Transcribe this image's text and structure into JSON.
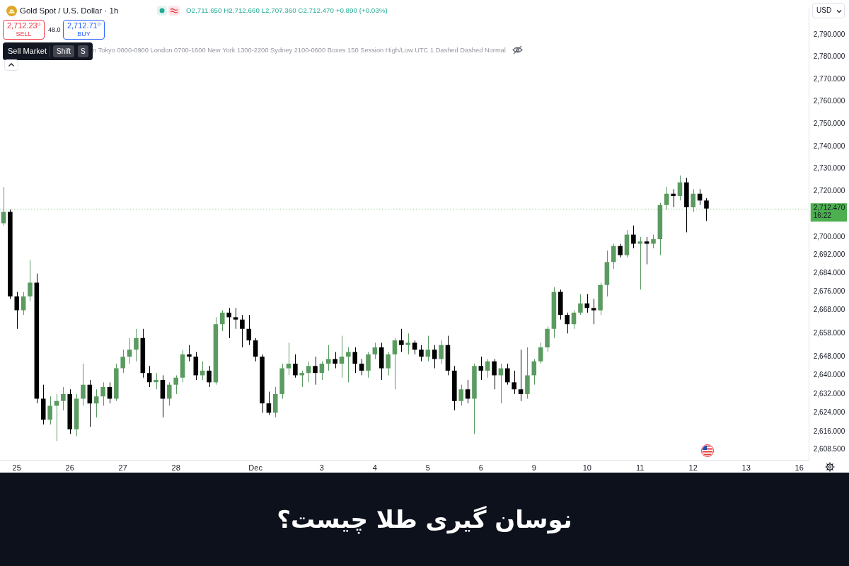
{
  "chart_data": {
    "type": "candlestick",
    "title": "نوسان گیری طلا چیست؟",
    "subtitle": "Gold Spot / U.S. Dollar · 1h",
    "categories": [
      null,
      null,
      "25",
      null,
      null,
      null,
      null,
      null,
      null,
      null,
      "26",
      null,
      null,
      null,
      null,
      null,
      null,
      null,
      "27",
      null,
      null,
      null,
      null,
      null,
      null,
      null,
      "28",
      null,
      null,
      null,
      null,
      null,
      null,
      null,
      null,
      null,
      null,
      null,
      "Dec",
      null,
      null,
      null,
      null,
      null,
      null,
      null,
      null,
      null,
      "3",
      null,
      null,
      null,
      null,
      null,
      null,
      null,
      "4",
      null,
      null,
      null,
      null,
      null,
      null,
      null,
      "5",
      null,
      null,
      null,
      null,
      null,
      null,
      null,
      "6",
      null,
      null,
      null,
      null,
      null,
      null,
      null,
      "9",
      null,
      null,
      null,
      null,
      null,
      null,
      null,
      "10",
      null,
      null,
      null,
      null,
      null,
      null,
      null,
      "11",
      null,
      null,
      null,
      null,
      null,
      null,
      null,
      "12",
      null,
      null,
      null,
      null,
      null,
      null,
      null,
      "13",
      null,
      null,
      null,
      null,
      null,
      null,
      null,
      "16",
      null
    ],
    "ohlc": [
      [
        2706,
        2722,
        2705,
        2711
      ],
      [
        2711,
        2712,
        2673,
        2674
      ],
      [
        2674,
        2676,
        2660,
        2668
      ],
      [
        2668,
        2676,
        2666,
        2674
      ],
      [
        2674,
        2690,
        2672,
        2680
      ],
      [
        2680,
        2684,
        2628,
        2630
      ],
      [
        2630,
        2636,
        2619,
        2621
      ],
      [
        2621,
        2631,
        2619,
        2627
      ],
      [
        2627,
        2632,
        2612,
        2629
      ],
      [
        2629,
        2635,
        2625,
        2632
      ],
      [
        2632,
        2634,
        2615,
        2617
      ],
      [
        2617,
        2632,
        2614,
        2630
      ],
      [
        2630,
        2645,
        2627,
        2636
      ],
      [
        2636,
        2638,
        2618,
        2628
      ],
      [
        2628,
        2634,
        2622,
        2631
      ],
      [
        2631,
        2637,
        2627,
        2635
      ],
      [
        2635,
        2637,
        2628,
        2630
      ],
      [
        2630,
        2645,
        2629,
        2643
      ],
      [
        2643,
        2651,
        2641,
        2648
      ],
      [
        2648,
        2656,
        2645,
        2651
      ],
      [
        2651,
        2660,
        2646,
        2656
      ],
      [
        2656,
        2660,
        2639,
        2641
      ],
      [
        2641,
        2644,
        2635,
        2637
      ],
      [
        2637,
        2641,
        2634,
        2638
      ],
      [
        2638,
        2640,
        2622,
        2630
      ],
      [
        2630,
        2637,
        2627,
        2636
      ],
      [
        2636,
        2640,
        2632,
        2639
      ],
      [
        2639,
        2651,
        2637,
        2649
      ],
      [
        2649,
        2653,
        2646,
        2648
      ],
      [
        2648,
        2650,
        2638,
        2640
      ],
      [
        2640,
        2646,
        2638,
        2642
      ],
      [
        2642,
        2644,
        2635,
        2637
      ],
      [
        2637,
        2665,
        2636,
        2662
      ],
      [
        2662,
        2668,
        2659,
        2667
      ],
      [
        2667,
        2669,
        2656,
        2665
      ],
      [
        2665,
        2669,
        2660,
        2664
      ],
      [
        2664,
        2666,
        2652,
        2660
      ],
      [
        2660,
        2666,
        2653,
        2655
      ],
      [
        2655,
        2656,
        2646,
        2648
      ],
      [
        2648,
        2649,
        2624,
        2628
      ],
      [
        2628,
        2633,
        2623,
        2624
      ],
      [
        2624,
        2635,
        2622,
        2632
      ],
      [
        2632,
        2645,
        2630,
        2643
      ],
      [
        2643,
        2654,
        2640,
        2645
      ],
      [
        2645,
        2649,
        2639,
        2640
      ],
      [
        2640,
        2642,
        2635,
        2641
      ],
      [
        2641,
        2646,
        2637,
        2644
      ],
      [
        2644,
        2648,
        2636,
        2641
      ],
      [
        2641,
        2646,
        2638,
        2645
      ],
      [
        2645,
        2653,
        2642,
        2647
      ],
      [
        2647,
        2650,
        2643,
        2645
      ],
      [
        2645,
        2657,
        2639,
        2648
      ],
      [
        2648,
        2652,
        2637,
        2650
      ],
      [
        2650,
        2652,
        2641,
        2645
      ],
      [
        2645,
        2647,
        2640,
        2642
      ],
      [
        2642,
        2650,
        2639,
        2649
      ],
      [
        2649,
        2654,
        2647,
        2652
      ],
      [
        2652,
        2654,
        2638,
        2643
      ],
      [
        2643,
        2650,
        2640,
        2649
      ],
      [
        2649,
        2656,
        2634,
        2655
      ],
      [
        2655,
        2660,
        2650,
        2653
      ],
      [
        2653,
        2658,
        2649,
        2654
      ],
      [
        2654,
        2655,
        2649,
        2651
      ],
      [
        2651,
        2653,
        2646,
        2648
      ],
      [
        2648,
        2657,
        2646,
        2651
      ],
      [
        2651,
        2653,
        2643,
        2647
      ],
      [
        2647,
        2655,
        2645,
        2653
      ],
      [
        2653,
        2657,
        2640,
        2642
      ],
      [
        2642,
        2644,
        2625,
        2629
      ],
      [
        2629,
        2636,
        2627,
        2634
      ],
      [
        2634,
        2638,
        2628,
        2630
      ],
      [
        2630,
        2645,
        2615,
        2644
      ],
      [
        2644,
        2648,
        2638,
        2642
      ],
      [
        2642,
        2647,
        2639,
        2646
      ],
      [
        2646,
        2647,
        2634,
        2640
      ],
      [
        2640,
        2645,
        2628,
        2643
      ],
      [
        2643,
        2645,
        2636,
        2637
      ],
      [
        2637,
        2642,
        2632,
        2634
      ],
      [
        2634,
        2651,
        2629,
        2632
      ],
      [
        2632,
        2652,
        2630,
        2640
      ],
      [
        2640,
        2647,
        2636,
        2646
      ],
      [
        2646,
        2654,
        2645,
        2652
      ],
      [
        2652,
        2661,
        2650,
        2660
      ],
      [
        2660,
        2678,
        2656,
        2676
      ],
      [
        2676,
        2677,
        2664,
        2666
      ],
      [
        2666,
        2667,
        2658,
        2662
      ],
      [
        2662,
        2668,
        2660,
        2667
      ],
      [
        2667,
        2675,
        2666,
        2671
      ],
      [
        2671,
        2675,
        2667,
        2669
      ],
      [
        2669,
        2673,
        2662,
        2668
      ],
      [
        2668,
        2680,
        2666,
        2679
      ],
      [
        2679,
        2694,
        2674,
        2689
      ],
      [
        2689,
        2697,
        2686,
        2696
      ],
      [
        2696,
        2697,
        2691,
        2692
      ],
      [
        2692,
        2703,
        2691,
        2701
      ],
      [
        2701,
        2705,
        2695,
        2697
      ],
      [
        2697,
        2700,
        2677,
        2698
      ],
      [
        2698,
        2700,
        2688,
        2697
      ],
      [
        2697,
        2701,
        2695,
        2699
      ],
      [
        2699,
        2715,
        2692,
        2714
      ],
      [
        2714,
        2722,
        2712,
        2719
      ],
      [
        2719,
        2721,
        2713,
        2718
      ],
      [
        2718,
        2727,
        2716,
        2724
      ],
      [
        2724,
        2726,
        2702,
        2713
      ],
      [
        2713,
        2721,
        2711,
        2719
      ],
      [
        2719,
        2721,
        2714,
        2716
      ],
      [
        2716,
        2717,
        2707,
        2712.47
      ],
      null,
      null,
      null,
      null,
      null,
      null,
      null,
      null,
      null,
      null,
      null,
      null,
      null,
      null,
      null
    ],
    "colors": [
      "#5b9b61",
      "#000000",
      "#000000",
      "#5b9b61",
      "#5b9b61",
      "#000000",
      "#000000",
      "#5b9b61",
      "#5b9b61",
      "#5b9b61",
      "#000000",
      "#5b9b61",
      "#5b9b61",
      "#000000",
      "#5b9b61",
      "#5b9b61",
      "#000000",
      "#5b9b61",
      "#5b9b61",
      "#5b9b61",
      "#5b9b61",
      "#000000",
      "#000000",
      "#5b9b61",
      "#000000",
      "#5b9b61",
      "#5b9b61",
      "#5b9b61",
      "#000000",
      "#000000",
      "#5b9b61",
      "#000000",
      "#5b9b61",
      "#5b9b61",
      "#000000",
      "#000000",
      "#000000",
      "#000000",
      "#000000",
      "#000000",
      "#000000",
      "#5b9b61",
      "#5b9b61",
      "#5b9b61",
      "#000000",
      "#5b9b61",
      "#5b9b61",
      "#000000",
      "#5b9b61",
      "#5b9b61",
      "#000000",
      "#5b9b61",
      "#5b9b61",
      "#000000",
      "#000000",
      "#5b9b61",
      "#5b9b61",
      "#000000",
      "#5b9b61",
      "#5b9b61",
      "#000000",
      "#5b9b61",
      "#000000",
      "#000000",
      "#5b9b61",
      "#000000",
      "#5b9b61",
      "#000000",
      "#000000",
      "#5b9b61",
      "#000000",
      "#5b9b61",
      "#000000",
      "#5b9b61",
      "#000000",
      "#5b9b61",
      "#000000",
      "#000000",
      "#000000",
      "#5b9b61",
      "#5b9b61",
      "#5b9b61",
      "#5b9b61",
      "#5b9b61",
      "#000000",
      "#000000",
      "#5b9b61",
      "#5b9b61",
      "#000000",
      "#000000",
      "#5b9b61",
      "#5b9b61",
      "#5b9b61",
      "#000000",
      "#5b9b61",
      "#000000",
      "#5b9b61",
      "#000000",
      "#5b9b61",
      "#5b9b61",
      "#5b9b61",
      "#000000",
      "#5b9b61",
      "#000000",
      "#5b9b61",
      "#000000",
      "#000000",
      null,
      null,
      null,
      null,
      null,
      null,
      null,
      null,
      null,
      null,
      null,
      null,
      null,
      null,
      null
    ],
    "log": true,
    "ylim": [
      2604,
      2802
    ],
    "yticks": [
      {
        "value": 2790,
        "label": "2,790.000"
      },
      {
        "value": 2780,
        "label": "2,780.000"
      },
      {
        "value": 2770,
        "label": "2,770.000"
      },
      {
        "value": 2760,
        "label": "2,760.000"
      },
      {
        "value": 2750,
        "label": "2,750.000"
      },
      {
        "value": 2740,
        "label": "2,740.000"
      },
      {
        "value": 2730,
        "label": "2,730.000"
      },
      {
        "value": 2720,
        "label": "2,720.000"
      },
      {
        "value": 2700,
        "label": "2,700.000"
      },
      {
        "value": 2692,
        "label": "2,692.000"
      },
      {
        "value": 2684,
        "label": "2,684.000"
      },
      {
        "value": 2676,
        "label": "2,676.000"
      },
      {
        "value": 2668,
        "label": "2,668.000"
      },
      {
        "value": 2658,
        "label": "2,658.000"
      },
      {
        "value": 2648,
        "label": "2,648.000"
      },
      {
        "value": 2640,
        "label": "2,640.000"
      },
      {
        "value": 2632,
        "label": "2,632.000"
      },
      {
        "value": 2624,
        "label": "2,624.000"
      },
      {
        "value": 2616,
        "label": "2,616.000"
      },
      {
        "value": 2608.5,
        "label": "2,608.500"
      }
    ],
    "ref_lines": [
      {
        "axis": "y",
        "value": 2712.47,
        "label": "2,712.470",
        "color": "#4caf50",
        "line_style": "dotted"
      }
    ],
    "annotations": [
      "O2,711.650 H2,712.660 L2,707.360 C2,712.470 +0.890 (+0.03%)",
      "2,712.23⁰",
      "SELL",
      "48.0",
      "2,712.71⁰",
      "BUY",
      "Sell Market",
      "Shift",
      "S",
      "n Tokyo 0000-0900 London 0700-1600 New York 1300-2200 Sydney 2100-0600 Boxes 150 Session High/Low UTC 1 Dashed Dashed Normal",
      "USD",
      "16:22"
    ]
  }
}
